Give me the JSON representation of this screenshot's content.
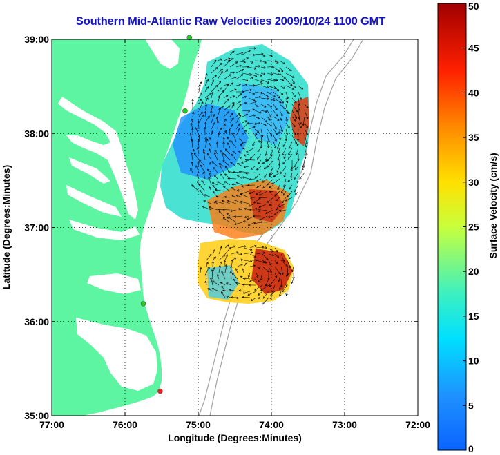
{
  "title": "Southern Mid-Atlantic Raw Velocities 2009/10/24 1100 GMT",
  "xaxis": {
    "label": "Longitude (Degrees:Minutes)",
    "range": [
      -77,
      -72
    ],
    "ticks": [
      {
        "value": -77,
        "label": "77:00"
      },
      {
        "value": -76,
        "label": "76:00"
      },
      {
        "value": -75,
        "label": "75:00"
      },
      {
        "value": -74,
        "label": "74:00"
      },
      {
        "value": -73,
        "label": "73:00"
      },
      {
        "value": -72,
        "label": "72:00"
      }
    ]
  },
  "yaxis": {
    "label": "Latitude (Degrees:Minutes)",
    "range": [
      35,
      39
    ],
    "ticks": [
      {
        "value": 35,
        "label": "35:00"
      },
      {
        "value": 36,
        "label": "36:00"
      },
      {
        "value": 37,
        "label": "37:00"
      },
      {
        "value": 38,
        "label": "38:00"
      },
      {
        "value": 39,
        "label": "39:00"
      }
    ]
  },
  "grid": true,
  "colorbar": {
    "label": "Surface Velocity (cm/s)",
    "min": 0,
    "max": 50,
    "colormap": "jet",
    "ticks": [
      "0",
      "5",
      "10",
      "15",
      "20",
      "25",
      "30",
      "35",
      "40",
      "45",
      "50"
    ]
  },
  "land_color": "#5ef5a2",
  "water_color": "#ffffff",
  "bathymetry_color": "#a0a0a0",
  "sites": [
    {
      "lon": -75.12,
      "lat": 39.02,
      "color": "#22cc22"
    },
    {
      "lon": -75.18,
      "lat": 38.24,
      "color": "#22cc22"
    },
    {
      "lon": -75.75,
      "lat": 36.19,
      "color": "#22cc22"
    },
    {
      "lon": -75.52,
      "lat": 35.26,
      "color": "#ee2020"
    }
  ]
}
